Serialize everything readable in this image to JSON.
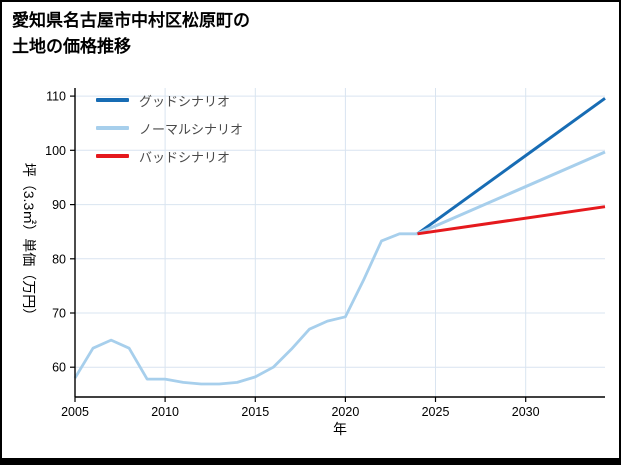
{
  "page": {
    "title_line1": "愛知県名古屋市中村区松原町の",
    "title_line2": "土地の価格推移"
  },
  "chart_data": {
    "type": "line",
    "title": "愛知県名古屋市中村区松原町の土地の価格推移",
    "xlabel": "年",
    "ylabel": "坪（3.3㎡）単価（万円）",
    "xlim": [
      2005,
      2034.4
    ],
    "ylim": [
      54.5,
      111.5
    ],
    "xticks": [
      2005,
      2010,
      2015,
      2020,
      2025,
      2030
    ],
    "yticks": [
      60,
      70,
      80,
      90,
      100,
      110
    ],
    "grid": true,
    "grid_color": "#d9e4f0",
    "axis_color": "#000000",
    "legend_position": "upper-left",
    "series": [
      {
        "id": "historical",
        "label": null,
        "in_legend": false,
        "color": "#a7cfec",
        "width": 2.8,
        "x": [
          2005,
          2006,
          2007,
          2008,
          2009,
          2010,
          2011,
          2012,
          2013,
          2014,
          2015,
          2016,
          2017,
          2018,
          2019,
          2020,
          2021,
          2022,
          2023,
          2024
        ],
        "y": [
          58,
          63.5,
          65,
          63.5,
          57.8,
          57.8,
          57.2,
          56.9,
          56.9,
          57.2,
          58.2,
          60,
          63.3,
          67,
          68.5,
          69.3,
          76,
          83.3,
          84.6,
          84.6
        ]
      },
      {
        "id": "good-scenario",
        "label": "グッドシナリオ",
        "in_legend": true,
        "color": "#176cb4",
        "width": 3,
        "x": [
          2024,
          2034.4
        ],
        "y": [
          84.6,
          109.6
        ]
      },
      {
        "id": "normal-scenario",
        "label": "ノーマルシナリオ",
        "in_legend": true,
        "color": "#a7cfec",
        "width": 3,
        "x": [
          2024,
          2034.4
        ],
        "y": [
          84.6,
          99.7
        ]
      },
      {
        "id": "bad-scenario",
        "label": "バッドシナリオ",
        "in_legend": true,
        "color": "#e5191d",
        "width": 3,
        "x": [
          2024,
          2034.4
        ],
        "y": [
          84.6,
          89.6
        ]
      }
    ]
  }
}
